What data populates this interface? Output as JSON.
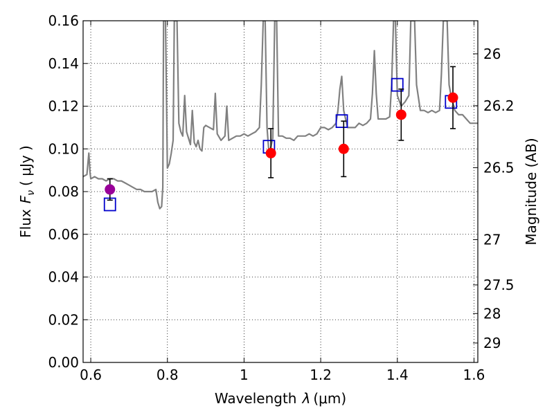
{
  "chart_data": {
    "type": "scatter",
    "xlabel_text": "Wavelength",
    "xlabel_symbol": "λ",
    "xlabel_unit": "(μm)",
    "ylabel_text": "Flux",
    "ylabel_symbol": "F",
    "ylabel_subscript": "ν",
    "ylabel_unit": "( μJy )",
    "y2label": "Magnitude (AB)",
    "xlim": [
      0.58,
      1.61
    ],
    "ylim": [
      0.0,
      0.16
    ],
    "grid": true,
    "x_ticks": [
      "0.6",
      "0.8",
      "1",
      "1.2",
      "1.4",
      "1.6"
    ],
    "y_ticks": [
      "0.00",
      "0.02",
      "0.04",
      "0.06",
      "0.08",
      "0.10",
      "0.12",
      "0.14",
      "0.16"
    ],
    "y2_ticks": [
      {
        "label": "26",
        "flux": 0.1445
      },
      {
        "label": "26.2",
        "flux": 0.1202
      },
      {
        "label": "26.5",
        "flux": 0.0912
      },
      {
        "label": "27",
        "flux": 0.0575
      },
      {
        "label": "27.5",
        "flux": 0.0363
      },
      {
        "label": "28",
        "flux": 0.0229
      },
      {
        "label": "29",
        "flux": 0.0091
      }
    ],
    "colors": {
      "model": "#808080",
      "observed": "#ff0000",
      "observed_optical": "#990099",
      "model_photometry": "#0000cc",
      "errorbar": "#000000"
    },
    "model_spectrum": [
      [
        0.58,
        0.087
      ],
      [
        0.59,
        0.088
      ],
      [
        0.595,
        0.098
      ],
      [
        0.598,
        0.089
      ],
      [
        0.6,
        0.086
      ],
      [
        0.61,
        0.087
      ],
      [
        0.62,
        0.086
      ],
      [
        0.63,
        0.086
      ],
      [
        0.64,
        0.085
      ],
      [
        0.65,
        0.086
      ],
      [
        0.66,
        0.086
      ],
      [
        0.67,
        0.085
      ],
      [
        0.68,
        0.085
      ],
      [
        0.69,
        0.084
      ],
      [
        0.7,
        0.083
      ],
      [
        0.71,
        0.082
      ],
      [
        0.72,
        0.081
      ],
      [
        0.73,
        0.081
      ],
      [
        0.74,
        0.08
      ],
      [
        0.75,
        0.08
      ],
      [
        0.76,
        0.08
      ],
      [
        0.77,
        0.081
      ],
      [
        0.775,
        0.075
      ],
      [
        0.78,
        0.072
      ],
      [
        0.785,
        0.073
      ],
      [
        0.788,
        0.082
      ],
      [
        0.79,
        0.16
      ],
      [
        0.795,
        0.16
      ],
      [
        0.8,
        0.091
      ],
      [
        0.805,
        0.093
      ],
      [
        0.81,
        0.098
      ],
      [
        0.815,
        0.104
      ],
      [
        0.818,
        0.16
      ],
      [
        0.825,
        0.16
      ],
      [
        0.83,
        0.112
      ],
      [
        0.835,
        0.108
      ],
      [
        0.84,
        0.106
      ],
      [
        0.845,
        0.125
      ],
      [
        0.85,
        0.108
      ],
      [
        0.86,
        0.102
      ],
      [
        0.865,
        0.118
      ],
      [
        0.87,
        0.103
      ],
      [
        0.875,
        0.101
      ],
      [
        0.88,
        0.104
      ],
      [
        0.885,
        0.1
      ],
      [
        0.89,
        0.099
      ],
      [
        0.895,
        0.11
      ],
      [
        0.9,
        0.111
      ],
      [
        0.91,
        0.11
      ],
      [
        0.92,
        0.109
      ],
      [
        0.925,
        0.126
      ],
      [
        0.93,
        0.107
      ],
      [
        0.94,
        0.104
      ],
      [
        0.95,
        0.106
      ],
      [
        0.955,
        0.12
      ],
      [
        0.96,
        0.104
      ],
      [
        0.97,
        0.105
      ],
      [
        0.98,
        0.106
      ],
      [
        0.99,
        0.106
      ],
      [
        1.0,
        0.107
      ],
      [
        1.01,
        0.106
      ],
      [
        1.02,
        0.107
      ],
      [
        1.03,
        0.108
      ],
      [
        1.04,
        0.11
      ],
      [
        1.045,
        0.13
      ],
      [
        1.05,
        0.16
      ],
      [
        1.055,
        0.16
      ],
      [
        1.06,
        0.11
      ],
      [
        1.065,
        0.098
      ],
      [
        1.07,
        0.101
      ],
      [
        1.075,
        0.105
      ],
      [
        1.08,
        0.16
      ],
      [
        1.085,
        0.16
      ],
      [
        1.09,
        0.106
      ],
      [
        1.1,
        0.106
      ],
      [
        1.11,
        0.105
      ],
      [
        1.12,
        0.105
      ],
      [
        1.13,
        0.104
      ],
      [
        1.14,
        0.106
      ],
      [
        1.15,
        0.106
      ],
      [
        1.16,
        0.106
      ],
      [
        1.17,
        0.107
      ],
      [
        1.18,
        0.106
      ],
      [
        1.19,
        0.107
      ],
      [
        1.2,
        0.11
      ],
      [
        1.21,
        0.11
      ],
      [
        1.22,
        0.109
      ],
      [
        1.23,
        0.11
      ],
      [
        1.24,
        0.112
      ],
      [
        1.245,
        0.118
      ],
      [
        1.25,
        0.128
      ],
      [
        1.255,
        0.134
      ],
      [
        1.26,
        0.118
      ],
      [
        1.27,
        0.11
      ],
      [
        1.28,
        0.11
      ],
      [
        1.29,
        0.11
      ],
      [
        1.3,
        0.112
      ],
      [
        1.31,
        0.111
      ],
      [
        1.32,
        0.112
      ],
      [
        1.33,
        0.114
      ],
      [
        1.335,
        0.126
      ],
      [
        1.34,
        0.146
      ],
      [
        1.345,
        0.126
      ],
      [
        1.35,
        0.114
      ],
      [
        1.36,
        0.114
      ],
      [
        1.37,
        0.114
      ],
      [
        1.38,
        0.115
      ],
      [
        1.385,
        0.13
      ],
      [
        1.39,
        0.16
      ],
      [
        1.395,
        0.16
      ],
      [
        1.4,
        0.125
      ],
      [
        1.41,
        0.12
      ],
      [
        1.42,
        0.122
      ],
      [
        1.43,
        0.125
      ],
      [
        1.435,
        0.16
      ],
      [
        1.445,
        0.16
      ],
      [
        1.45,
        0.13
      ],
      [
        1.46,
        0.118
      ],
      [
        1.47,
        0.118
      ],
      [
        1.48,
        0.117
      ],
      [
        1.49,
        0.118
      ],
      [
        1.5,
        0.117
      ],
      [
        1.51,
        0.118
      ],
      [
        1.515,
        0.135
      ],
      [
        1.52,
        0.16
      ],
      [
        1.53,
        0.16
      ],
      [
        1.535,
        0.13
      ],
      [
        1.54,
        0.125
      ],
      [
        1.55,
        0.118
      ],
      [
        1.56,
        0.116
      ],
      [
        1.57,
        0.116
      ],
      [
        1.58,
        0.114
      ],
      [
        1.59,
        0.112
      ],
      [
        1.6,
        0.112
      ],
      [
        1.61,
        0.112
      ]
    ],
    "observed_photometry": [
      {
        "x": 0.65,
        "y": 0.081,
        "err": 0.005,
        "color": "#990099"
      },
      {
        "x": 1.07,
        "y": 0.098,
        "err": 0.0115,
        "color": "#ff0000"
      },
      {
        "x": 1.26,
        "y": 0.1,
        "err": 0.013,
        "color": "#ff0000"
      },
      {
        "x": 1.41,
        "y": 0.116,
        "err": 0.012,
        "color": "#ff0000"
      },
      {
        "x": 1.545,
        "y": 0.124,
        "err": 0.0145,
        "color": "#ff0000"
      }
    ],
    "model_photometry": [
      {
        "x": 0.65,
        "y": 0.074
      },
      {
        "x": 1.065,
        "y": 0.101
      },
      {
        "x": 1.255,
        "y": 0.113
      },
      {
        "x": 1.4,
        "y": 0.13
      },
      {
        "x": 1.54,
        "y": 0.122
      }
    ]
  }
}
